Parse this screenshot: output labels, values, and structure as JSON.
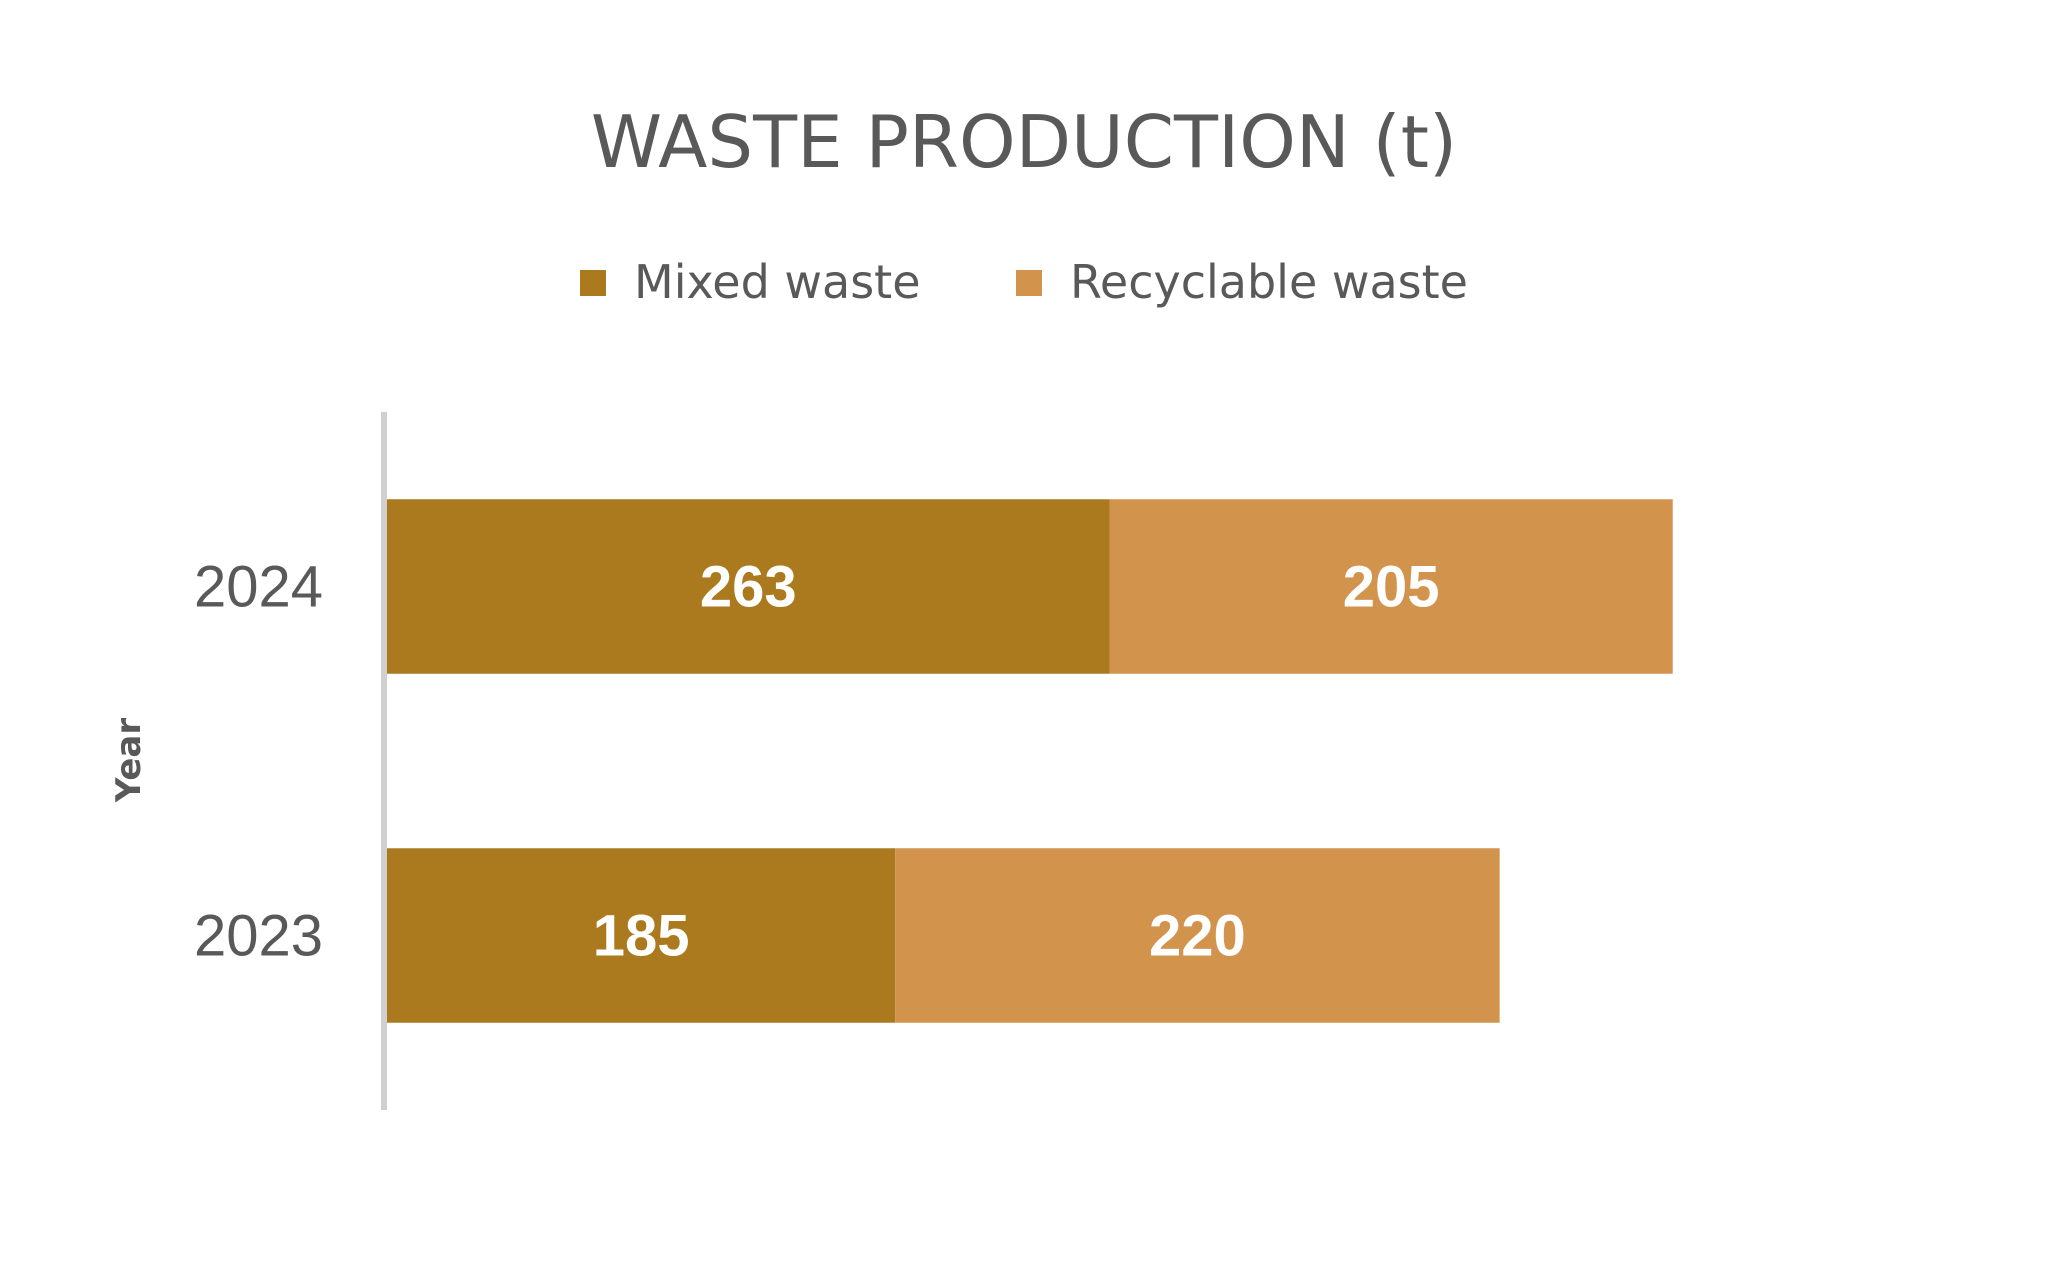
{
  "chart_data": {
    "type": "bar",
    "orientation": "horizontal",
    "stacked": true,
    "title": "WASTE PRODUCTION (t)",
    "ylabel": "Year",
    "xlabel": "",
    "categories": [
      "2024",
      "2023"
    ],
    "series": [
      {
        "name": "Mixed waste",
        "values": [
          263,
          185
        ],
        "color": "#AB7A1F"
      },
      {
        "name": "Recyclable waste",
        "values": [
          205,
          220
        ],
        "color": "#D2944D"
      }
    ],
    "xlim": [
      0,
      550
    ],
    "grid": false,
    "legend_position": "top",
    "axis_color": "#D0D0D0",
    "text_color": "#595959",
    "label_color": "#FFFFFF"
  }
}
